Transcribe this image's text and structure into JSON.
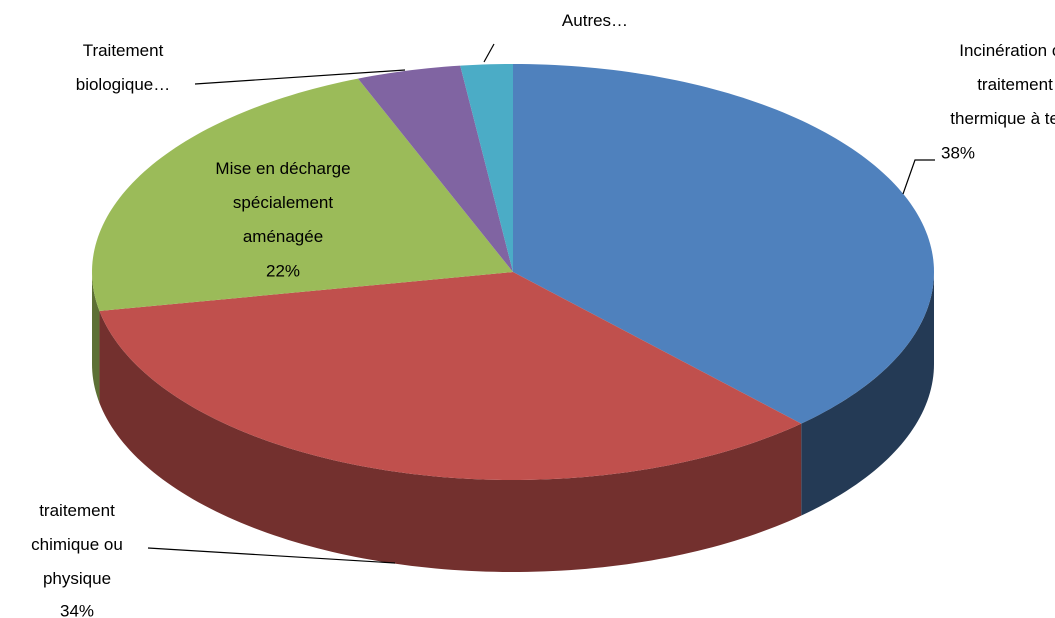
{
  "chart_data": {
    "type": "pie3d",
    "categories": [
      "Incinération ou traitement thermique à terre",
      "traitement chimique ou physique",
      "Mise en décharge spécialement aménagée",
      "Traitement biologique…",
      "Autres…"
    ],
    "values": [
      38,
      34,
      22,
      4,
      2
    ],
    "value_labels": [
      "38%",
      "34%",
      "22%",
      null,
      null
    ],
    "colors": [
      "#4f81bd",
      "#c0504d",
      "#9bbb59",
      "#8064a2",
      "#4bacc6"
    ]
  }
}
